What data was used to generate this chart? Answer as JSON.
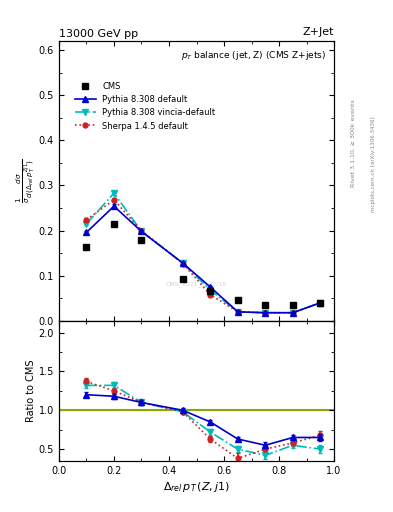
{
  "title_top": "13000 GeV pp",
  "title_right": "Z+Jet",
  "plot_title": "p_{T} balance (jet, Z) (CMS Z+jets)",
  "xlabel": "$\\Delta_{rel}\\,p_T\\,(Z,j1)$",
  "ylabel_ratio": "Ratio to CMS",
  "right_label": "Rivet 3.1.10, ≥ 300k events",
  "right_label2": "mcplots.cern.ch [arXiv:1306.3436]",
  "x_cms": [
    0.1,
    0.2,
    0.3,
    0.45,
    0.55,
    0.65,
    0.75,
    0.85,
    0.95
  ],
  "y_cms": [
    0.163,
    0.215,
    0.178,
    0.092,
    0.066,
    0.046,
    0.036,
    0.036,
    0.04
  ],
  "x_mc": [
    0.1,
    0.2,
    0.3,
    0.45,
    0.55,
    0.65,
    0.75,
    0.85,
    0.95
  ],
  "y_py8": [
    0.196,
    0.254,
    0.198,
    0.128,
    0.075,
    0.02,
    0.018,
    0.018,
    0.04
  ],
  "yerr_py8": [
    0.003,
    0.004,
    0.003,
    0.003,
    0.002,
    0.001,
    0.001,
    0.001,
    0.002
  ],
  "y_vinc": [
    0.215,
    0.283,
    0.198,
    0.128,
    0.068,
    0.02,
    0.018,
    0.018,
    0.04
  ],
  "yerr_vinc": [
    0.003,
    0.004,
    0.003,
    0.003,
    0.002,
    0.001,
    0.001,
    0.001,
    0.002
  ],
  "y_sherpa": [
    0.224,
    0.268,
    0.2,
    0.127,
    0.058,
    0.02,
    0.018,
    0.018,
    0.04
  ],
  "yerr_sherpa": [
    0.003,
    0.004,
    0.003,
    0.003,
    0.002,
    0.001,
    0.001,
    0.001,
    0.002
  ],
  "ratio_py8": [
    1.2,
    1.18,
    1.1,
    1.0,
    0.85,
    0.63,
    0.55,
    0.65,
    0.65
  ],
  "ratio_py8_err": [
    0.03,
    0.03,
    0.03,
    0.03,
    0.03,
    0.03,
    0.04,
    0.03,
    0.04
  ],
  "ratio_vinc": [
    1.32,
    1.32,
    1.1,
    0.98,
    0.72,
    0.5,
    0.42,
    0.55,
    0.5
  ],
  "ratio_vinc_err": [
    0.04,
    0.04,
    0.03,
    0.03,
    0.04,
    0.04,
    0.05,
    0.04,
    0.05
  ],
  "ratio_sherpa": [
    1.37,
    1.25,
    1.1,
    0.98,
    0.63,
    0.38,
    0.5,
    0.58,
    0.68
  ],
  "ratio_sherpa_err": [
    0.04,
    0.04,
    0.03,
    0.03,
    0.04,
    0.07,
    0.05,
    0.04,
    0.05
  ],
  "color_py8": "#0000cc",
  "color_vinc": "#00bbbb",
  "color_sherpa": "#cc2222",
  "color_cms": "#000000",
  "color_ref": "#88aa00",
  "ylim_main": [
    0.0,
    0.62
  ],
  "ylim_ratio": [
    0.35,
    2.15
  ],
  "xlim": [
    0.0,
    1.0
  ],
  "watermark": "CMS_2021_??/??/18"
}
